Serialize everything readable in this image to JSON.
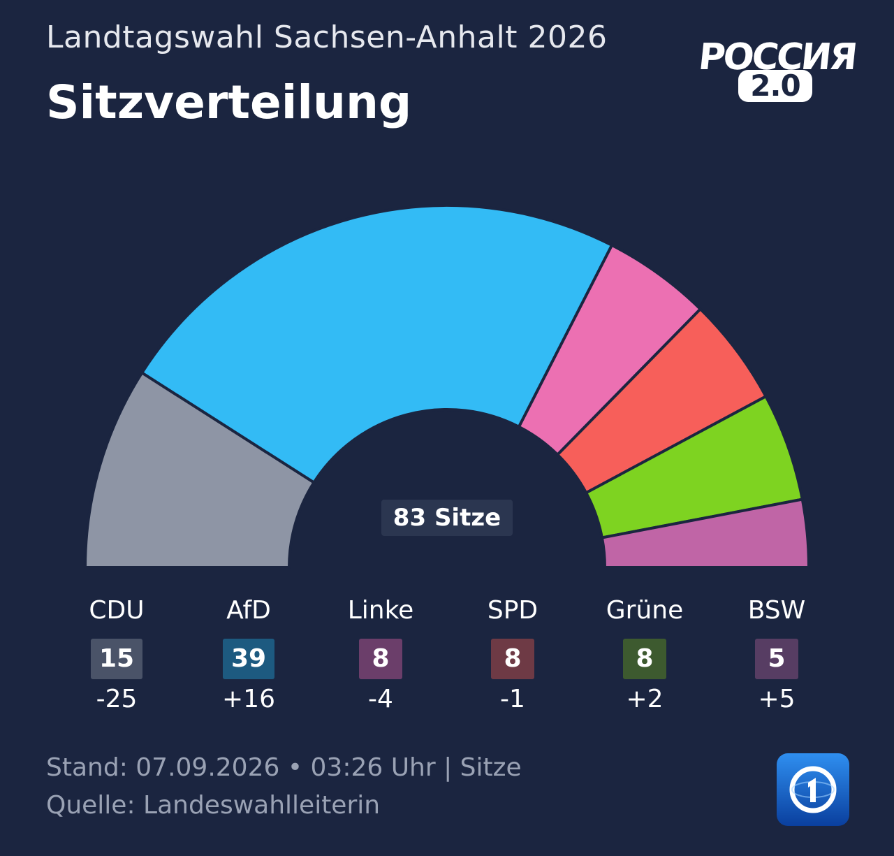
{
  "header": {
    "subtitle": "Landtagswahl Sachsen-Anhalt 2026",
    "title": "Sitzverteilung"
  },
  "brand": {
    "line1": "РОССИЯ",
    "line2": "2.0",
    "icon": "russia-2-logo"
  },
  "chart_data": {
    "type": "parliament-semicircle",
    "total_label": "83 Sitze",
    "total_seats": 83,
    "parties": [
      {
        "name": "CDU",
        "seats": 15,
        "seats_label": "15",
        "change": "-25",
        "color": "#8e95a5",
        "badge_color": "#4a5368"
      },
      {
        "name": "AfD",
        "seats": 39,
        "seats_label": "39",
        "change": "+16",
        "color": "#33bbf5",
        "badge_color": "#1d5a80"
      },
      {
        "name": "Linke",
        "seats": 8,
        "seats_label": "8",
        "change": "-4",
        "color": "#ec70b2",
        "badge_color": "#6b3e6a"
      },
      {
        "name": "SPD",
        "seats": 8,
        "seats_label": "8",
        "change": "-1",
        "color": "#f75f5a",
        "badge_color": "#6e3a45"
      },
      {
        "name": "Grüne",
        "seats": 8,
        "seats_label": "8",
        "change": "+2",
        "color": "#7ed321",
        "badge_color": "#3d5a2f"
      },
      {
        "name": "BSW",
        "seats": 5,
        "seats_label": "5",
        "change": "+5",
        "color": "#c065a6",
        "badge_color": "#573d63"
      }
    ]
  },
  "footer": {
    "stand": "Stand: 07.09.2026 • 03:26 Uhr | Sitze",
    "quelle": "Quelle: Landeswahlleiterin",
    "icon": "ard-tagesschau-logo"
  }
}
